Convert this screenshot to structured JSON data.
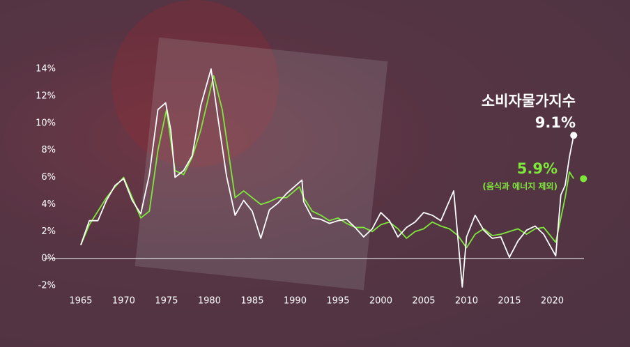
{
  "chart_data": {
    "type": "line",
    "xlim": [
      1960.7,
      2023.7
    ],
    "xticks": [
      1965,
      1970,
      1975,
      1980,
      1985,
      1990,
      1995,
      2000,
      2005,
      2010,
      2015,
      2020
    ],
    "ylim": [
      -2,
      14
    ],
    "yticks": [
      {
        "value": -2,
        "label": "-2%"
      },
      {
        "value": 0,
        "label": "0%"
      },
      {
        "value": 2,
        "label": "2%"
      },
      {
        "value": 4,
        "label": "4%"
      },
      {
        "value": 6,
        "label": "6%"
      },
      {
        "value": 8,
        "label": "8%"
      },
      {
        "value": 10,
        "label": "10%"
      },
      {
        "value": 12,
        "label": "12%"
      },
      {
        "value": 14,
        "label": "14%"
      }
    ],
    "series": [
      {
        "name": "소비자물가지수",
        "color": "#ffffff",
        "end_label": "9.1%",
        "x": [
          1965,
          1966,
          1967,
          1968,
          1969,
          1970,
          1971,
          1972,
          1973,
          1974,
          1974.9,
          1975.5,
          1976,
          1977,
          1978,
          1979,
          1980.2,
          1981,
          1982,
          1983,
          1984,
          1985,
          1986,
          1987,
          1988,
          1989,
          1990.8,
          1991,
          1992,
          1993,
          1994,
          1995,
          1996,
          1997,
          1998,
          1999,
          2000,
          2001,
          2002,
          2003,
          2004,
          2005,
          2006,
          2007,
          2008.5,
          2009.5,
          2010,
          2011,
          2012,
          2013,
          2014,
          2015,
          2016,
          2017,
          2018,
          2019,
          2020.4,
          2021,
          2021.5,
          2022,
          2022.5
        ],
        "values": [
          1.0,
          2.8,
          2.8,
          4.3,
          5.4,
          5.9,
          4.3,
          3.3,
          6.2,
          11.0,
          11.5,
          9.5,
          6.0,
          6.5,
          7.6,
          11.3,
          14.0,
          10.4,
          6.1,
          3.2,
          4.3,
          3.5,
          1.5,
          3.6,
          4.1,
          4.8,
          5.8,
          4.2,
          3.0,
          2.9,
          2.6,
          2.8,
          2.9,
          2.3,
          1.6,
          2.2,
          3.4,
          2.8,
          1.6,
          2.3,
          2.7,
          3.4,
          3.2,
          2.8,
          5.0,
          -2.1,
          1.6,
          3.2,
          2.1,
          1.5,
          1.6,
          0.1,
          1.3,
          2.1,
          2.4,
          1.8,
          0.2,
          4.7,
          5.4,
          7.5,
          9.1
        ]
      },
      {
        "name": "(음식과 에너지 제외)",
        "color": "#7de83a",
        "end_label": "5.9%",
        "x": [
          1965,
          1966,
          1967,
          1968,
          1969,
          1970,
          1971,
          1972,
          1973,
          1974,
          1975,
          1976,
          1977,
          1978,
          1979,
          1980.5,
          1981.5,
          1983,
          1984,
          1985,
          1986,
          1987,
          1988,
          1989,
          1990.5,
          1991,
          1992,
          1993,
          1994,
          1995,
          1996,
          1997,
          1998,
          1999,
          2000,
          2001,
          2002,
          2003,
          2004,
          2005,
          2006,
          2007,
          2008,
          2009,
          2010,
          2011,
          2012,
          2013,
          2014,
          2015,
          2016,
          2017,
          2018,
          2019,
          2020.4,
          2021,
          2021.5,
          2022,
          2022.5
        ],
        "values": [
          1.0,
          2.5,
          3.5,
          4.5,
          5.3,
          6.0,
          4.5,
          3.0,
          3.5,
          8.0,
          11.0,
          6.5,
          6.2,
          7.5,
          9.5,
          13.5,
          11.0,
          4.5,
          5.0,
          4.5,
          4.0,
          4.2,
          4.5,
          4.5,
          5.3,
          4.5,
          3.5,
          3.2,
          2.8,
          3.0,
          2.6,
          2.3,
          2.3,
          2.0,
          2.5,
          2.7,
          2.2,
          1.5,
          2.0,
          2.2,
          2.7,
          2.4,
          2.2,
          1.7,
          0.8,
          1.8,
          2.2,
          1.7,
          1.8,
          2.0,
          2.2,
          1.8,
          2.2,
          2.3,
          1.2,
          3.0,
          4.5,
          6.4,
          5.9
        ]
      }
    ]
  }
}
